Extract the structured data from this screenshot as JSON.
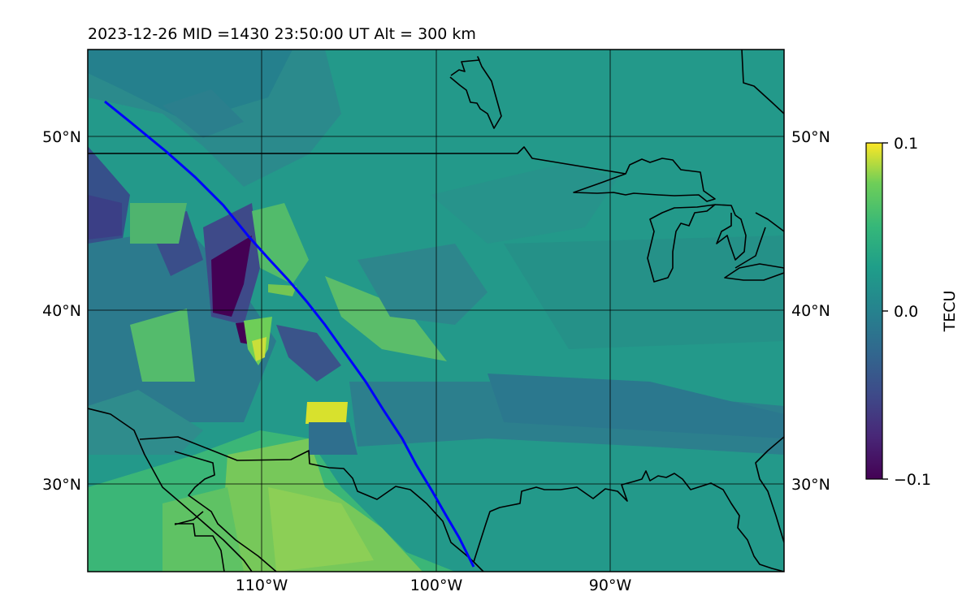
{
  "title": "2023-12-26  MID =1430    23:50:00  UT  Alt = 300 km",
  "map": {
    "lat_labels": [
      "50°N",
      "40°N",
      "30°N"
    ],
    "lon_labels": [
      "110°W",
      "100°W",
      "90°W"
    ],
    "extent": {
      "lon_min": -120,
      "lon_max": -80,
      "lat_min": 25,
      "lat_max": 55
    },
    "gridlines": true,
    "track_color": "#0000ff"
  },
  "colorbar": {
    "label": "TECU",
    "ticks": [
      "0.1",
      "0.0",
      "−0.1"
    ],
    "min": -0.1,
    "max": 0.1,
    "colormap": "viridis"
  }
}
